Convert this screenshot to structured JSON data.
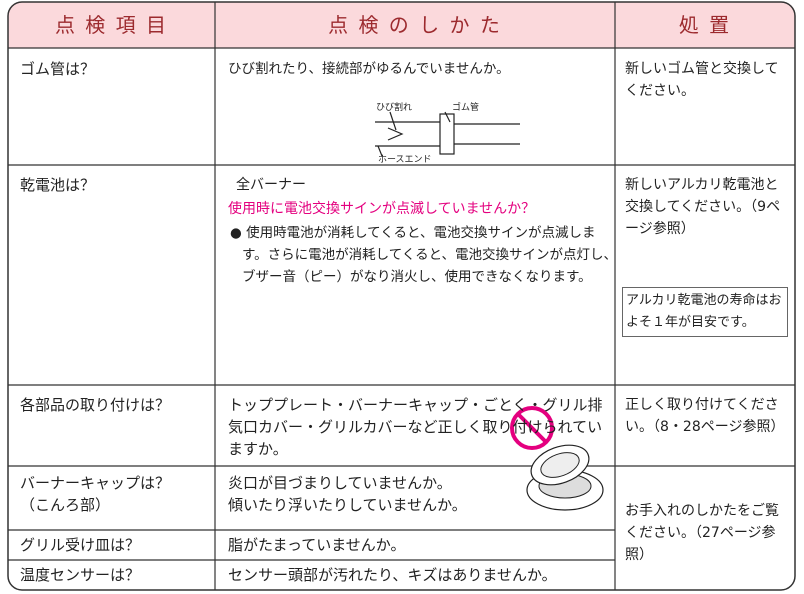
{
  "header": [
    "点 検 項 目",
    "点 検 の し か た",
    "処 置"
  ],
  "rows": [
    {
      "item": "ゴム管は？",
      "method": "ひび割れたり、接続部がゆるんでいませんか。",
      "diagram_labels": [
        "ひび割れ",
        "ゴム管",
        "ホースエンド"
      ],
      "action": "新しいゴム管と交換してください。"
    },
    {
      "item": "乾電池は？",
      "heading": "全バーナー",
      "question": "使用時に電池交換サインが点滅していませんか？",
      "bullet": "使用時電池が消耗してくると、電池交換サインが点滅します。さらに電池が消耗してくると、電池交換サインが点灯し、ブザー音（ピー）がなり消火し、使用できなくなります。",
      "action": "新しいアルカリ乾電池と交換してください。（9ページ参照）",
      "note": "アルカリ乾電池の寿命はおよそ１年が目安です。"
    },
    {
      "item": "各部品の取り付けは？",
      "method": "トッププレート・バーナーキャップ・ごとく・グリル排気口カバー・グリルカバーなど正しく取り付けられていますか。",
      "action": "正しく取り付けてください。（8・28ページ参照）"
    },
    {
      "item": "バーナーキャップは？",
      "item_sub": "（こんろ部）",
      "method": [
        "炎口が目づまりしていませんか。",
        "傾いたり浮いたりしていませんか。"
      ]
    },
    {
      "item": "グリル受け皿は？",
      "method": "脂がたまっていませんか。"
    },
    {
      "item": "温度センサーは？",
      "method": "センサー頭部が汚れたり、キズはありませんか。"
    }
  ],
  "shared_action": "お手入れのしかたをご覧ください。（27ページ参照）"
}
